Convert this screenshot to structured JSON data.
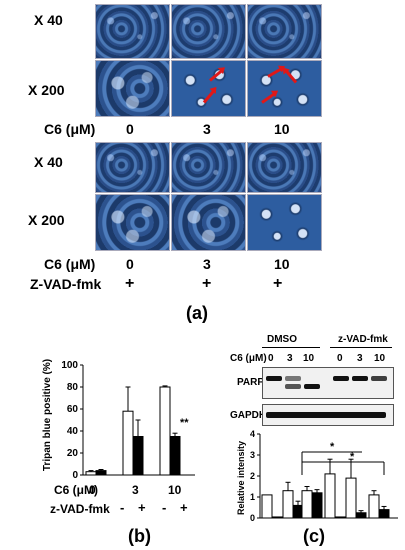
{
  "panel_a": {
    "row_labels": [
      "X 40",
      "X 200",
      "X 40",
      "X 200"
    ],
    "c6_label": "C6 (μM)",
    "c6_values": [
      "0",
      "3",
      "10"
    ],
    "zvad_label": "Z-VAD-fmk",
    "zvad_values": [
      "+",
      "+",
      "+"
    ],
    "panel_label": "(a)"
  },
  "panel_b": {
    "panel_label": "(b)",
    "c6_label": "C6 (μM)",
    "c6_values": [
      "0",
      "3",
      "10"
    ],
    "zvad_label": "z-VAD-fmk",
    "zvad_signs": [
      "-",
      "+",
      "-",
      "+",
      "-",
      "+"
    ],
    "significance": "**",
    "chart_data": {
      "type": "bar",
      "ylabel": "Tripan blue positive (%)",
      "ylim": [
        0,
        100
      ],
      "yticks": [
        "0",
        "20",
        "40",
        "60",
        "80",
        "100"
      ],
      "categories": [
        "0",
        "3",
        "10"
      ],
      "series": [
        {
          "color": "#ffffff",
          "values": [
            3,
            58,
            80
          ],
          "errors": [
            1,
            22,
            1
          ]
        },
        {
          "color": "#000000",
          "values": [
            4,
            35,
            35
          ],
          "errors": [
            1,
            15,
            3
          ]
        }
      ]
    }
  },
  "panel_c": {
    "panel_label": "(c)",
    "group_dmso": "DMSO",
    "group_zvad": "z-VAD-fmk",
    "c6_label": "C6 (μM)",
    "lane_values": [
      "0",
      "3",
      "10",
      "0",
      "3",
      "10"
    ],
    "blot_parp": "PARP",
    "blot_gapdh": "GAPDH",
    "significance": [
      "*",
      "*"
    ],
    "chart_data": {
      "type": "bar",
      "ylabel": "Relative intensity",
      "ylim": [
        0,
        4
      ],
      "yticks": [
        "0",
        "1",
        "2",
        "3",
        "4"
      ],
      "categories": [
        "0",
        "3",
        "10",
        "0",
        "3",
        "10"
      ],
      "series": [
        {
          "color": "#ffffff",
          "values": [
            1.1,
            1.3,
            1.3,
            2.1,
            1.9,
            1.1
          ],
          "errors": [
            0,
            0.4,
            0.2,
            0.7,
            0.9,
            0.2
          ]
        },
        {
          "color": "#000000",
          "values": [
            0.05,
            0.6,
            1.2,
            0.05,
            0.25,
            0.4
          ],
          "errors": [
            0,
            0.2,
            0.15,
            0,
            0.1,
            0.15
          ]
        }
      ]
    }
  }
}
